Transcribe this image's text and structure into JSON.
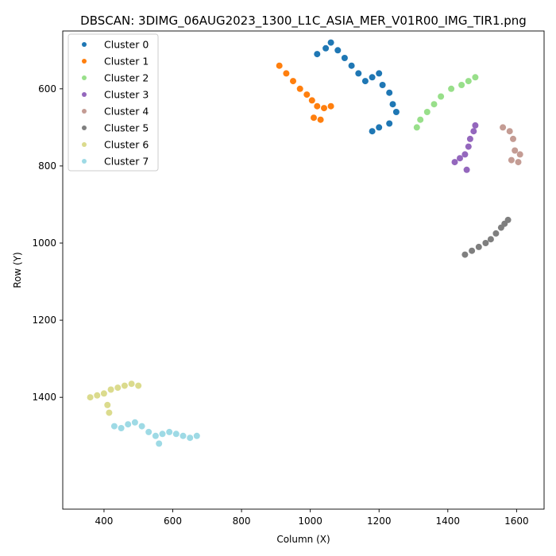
{
  "chart_data": {
    "type": "scatter",
    "title": "DBSCAN: 3DIMG_06AUG2023_1300_L1C_ASIA_MER_V01R00_IMG_TIR1.png",
    "xlabel": "Column (X)",
    "ylabel": "Row (Y)",
    "xlim": [
      280,
      1680
    ],
    "ylim": [
      1690,
      450
    ],
    "y_inverted": true,
    "grid": false,
    "legend_position": "top-left",
    "x_ticks": [
      400,
      600,
      800,
      1000,
      1200,
      1400,
      1600
    ],
    "y_ticks": [
      600,
      800,
      1000,
      1200,
      1400
    ],
    "series": [
      {
        "name": "Cluster 0",
        "color": "#1f77b4",
        "points": [
          [
            1020,
            510
          ],
          [
            1045,
            495
          ],
          [
            1060,
            480
          ],
          [
            1080,
            500
          ],
          [
            1100,
            520
          ],
          [
            1120,
            540
          ],
          [
            1140,
            560
          ],
          [
            1160,
            580
          ],
          [
            1180,
            570
          ],
          [
            1200,
            560
          ],
          [
            1210,
            590
          ],
          [
            1230,
            610
          ],
          [
            1240,
            640
          ],
          [
            1250,
            660
          ],
          [
            1230,
            690
          ],
          [
            1200,
            700
          ],
          [
            1180,
            710
          ]
        ]
      },
      {
        "name": "Cluster 1",
        "color": "#ff7f0e",
        "points": [
          [
            910,
            540
          ],
          [
            930,
            560
          ],
          [
            950,
            580
          ],
          [
            970,
            600
          ],
          [
            990,
            615
          ],
          [
            1005,
            630
          ],
          [
            1020,
            645
          ],
          [
            1040,
            650
          ],
          [
            1060,
            645
          ],
          [
            1010,
            675
          ],
          [
            1030,
            680
          ]
        ]
      },
      {
        "name": "Cluster 2",
        "color": "#98df8a",
        "points": [
          [
            1310,
            700
          ],
          [
            1320,
            680
          ],
          [
            1340,
            660
          ],
          [
            1360,
            640
          ],
          [
            1380,
            620
          ],
          [
            1410,
            600
          ],
          [
            1440,
            590
          ],
          [
            1460,
            580
          ],
          [
            1480,
            570
          ]
        ]
      },
      {
        "name": "Cluster 3",
        "color": "#9467bd",
        "points": [
          [
            1420,
            790
          ],
          [
            1435,
            780
          ],
          [
            1450,
            770
          ],
          [
            1460,
            750
          ],
          [
            1465,
            730
          ],
          [
            1475,
            710
          ],
          [
            1480,
            695
          ],
          [
            1455,
            810
          ]
        ]
      },
      {
        "name": "Cluster 4",
        "color": "#c49c94",
        "points": [
          [
            1560,
            700
          ],
          [
            1580,
            710
          ],
          [
            1590,
            730
          ],
          [
            1595,
            760
          ],
          [
            1585,
            785
          ],
          [
            1605,
            790
          ],
          [
            1610,
            770
          ]
        ]
      },
      {
        "name": "Cluster 5",
        "color": "#7f7f7f",
        "points": [
          [
            1450,
            1030
          ],
          [
            1470,
            1020
          ],
          [
            1490,
            1010
          ],
          [
            1510,
            1000
          ],
          [
            1525,
            990
          ],
          [
            1540,
            975
          ],
          [
            1555,
            960
          ],
          [
            1565,
            950
          ],
          [
            1575,
            940
          ]
        ]
      },
      {
        "name": "Cluster 6",
        "color": "#dbdb8d",
        "points": [
          [
            360,
            1400
          ],
          [
            380,
            1395
          ],
          [
            400,
            1390
          ],
          [
            420,
            1380
          ],
          [
            440,
            1375
          ],
          [
            460,
            1370
          ],
          [
            480,
            1365
          ],
          [
            500,
            1370
          ],
          [
            410,
            1420
          ],
          [
            415,
            1440
          ]
        ]
      },
      {
        "name": "Cluster 7",
        "color": "#9edae5",
        "points": [
          [
            430,
            1475
          ],
          [
            450,
            1480
          ],
          [
            470,
            1470
          ],
          [
            490,
            1465
          ],
          [
            510,
            1475
          ],
          [
            530,
            1490
          ],
          [
            550,
            1500
          ],
          [
            570,
            1495
          ],
          [
            590,
            1490
          ],
          [
            610,
            1495
          ],
          [
            630,
            1500
          ],
          [
            650,
            1505
          ],
          [
            670,
            1500
          ],
          [
            560,
            1520
          ]
        ]
      }
    ]
  }
}
